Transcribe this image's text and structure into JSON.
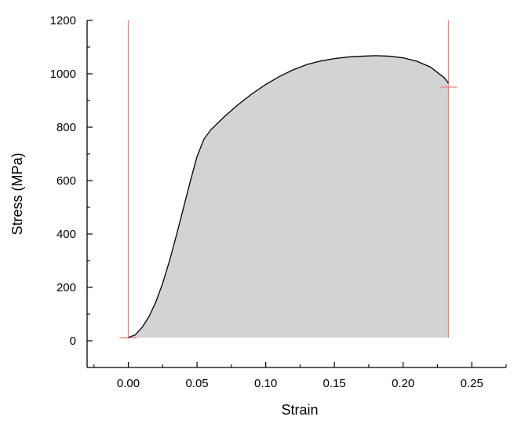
{
  "chart_data": {
    "type": "area",
    "xlabel": "Strain",
    "ylabel": "Stress (MPa)",
    "xlim": [
      -0.03,
      0.275
    ],
    "ylim": [
      -100,
      1200
    ],
    "x_ticks": [
      0.0,
      0.05,
      0.1,
      0.15,
      0.2,
      0.25
    ],
    "x_tick_labels": [
      "0.00",
      "0.05",
      "0.10",
      "0.15",
      "0.20",
      "0.25"
    ],
    "y_ticks": [
      0,
      200,
      400,
      600,
      800,
      1000,
      1200
    ],
    "y_tick_labels": [
      "0",
      "200",
      "400",
      "600",
      "800",
      "1000",
      "1200"
    ],
    "grid": false,
    "series": [
      {
        "x": [
          0.0,
          0.005,
          0.01,
          0.015,
          0.02,
          0.025,
          0.03,
          0.035,
          0.04,
          0.045,
          0.05,
          0.055,
          0.06,
          0.07,
          0.08,
          0.09,
          0.1,
          0.11,
          0.12,
          0.13,
          0.14,
          0.15,
          0.16,
          0.17,
          0.18,
          0.19,
          0.2,
          0.21,
          0.22,
          0.225,
          0.23,
          0.233
        ],
        "y": [
          12,
          22,
          50,
          90,
          145,
          215,
          300,
          395,
          495,
          595,
          690,
          755,
          790,
          840,
          885,
          925,
          960,
          990,
          1015,
          1035,
          1048,
          1057,
          1063,
          1066,
          1068,
          1066,
          1060,
          1047,
          1025,
          1005,
          985,
          965
        ]
      }
    ],
    "fill_baseline": 12,
    "markers": [
      {
        "kind": "vertical-line",
        "x": 0.0
      },
      {
        "kind": "vertical-line",
        "x": 0.233
      },
      {
        "kind": "horizontal-tick",
        "x": 0.0,
        "y": 12
      },
      {
        "kind": "horizontal-tick",
        "x": 0.233,
        "y": 950
      }
    ],
    "colors": {
      "fill": "#d3d3d3",
      "curve": "#000000",
      "marker": "#f08080",
      "axis": "#000000"
    }
  }
}
